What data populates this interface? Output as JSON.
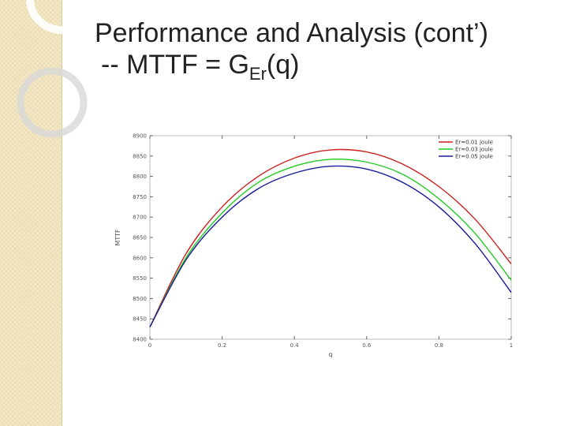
{
  "slide": {
    "title_line1": "Performance and Analysis (cont’)",
    "title_line2_main": "-- MTTF = G",
    "title_line2_sub": "Er",
    "title_line2_end": "(q)"
  },
  "chart_data": {
    "type": "line",
    "title": "",
    "xlabel": "q",
    "ylabel": "MTTF",
    "xlim": [
      0,
      1
    ],
    "ylim": [
      8400,
      8900
    ],
    "x_ticks": [
      0,
      0.2,
      0.4,
      0.6,
      0.8,
      1
    ],
    "x_tick_labels": [
      "0",
      "0.2",
      "0.4",
      "0.6",
      "0.8",
      "1"
    ],
    "y_ticks": [
      8400,
      8450,
      8500,
      8550,
      8600,
      8650,
      8700,
      8750,
      8800,
      8850,
      8900
    ],
    "y_tick_labels": [
      "8400",
      "8450",
      "8500",
      "8550",
      "8600",
      "8650",
      "8700",
      "8750",
      "8800",
      "8850",
      "8900"
    ],
    "grid": false,
    "legend_position": "top-right",
    "series": [
      {
        "name": "Er=0.01 joule",
        "color": "#cc2020",
        "x": [
          0,
          0.1,
          0.2,
          0.3,
          0.4,
          0.5,
          0.6,
          0.7,
          0.8,
          0.9,
          1.0
        ],
        "y": [
          8430,
          8610,
          8725,
          8800,
          8845,
          8865,
          8860,
          8830,
          8775,
          8695,
          8585
        ]
      },
      {
        "name": "Er=0.03 joule",
        "color": "#20cc20",
        "x": [
          0,
          0.1,
          0.2,
          0.3,
          0.4,
          0.5,
          0.6,
          0.7,
          0.8,
          0.9,
          1.0
        ],
        "y": [
          8430,
          8600,
          8710,
          8785,
          8825,
          8842,
          8835,
          8805,
          8745,
          8660,
          8545
        ]
      },
      {
        "name": "Er=0.05 joule",
        "color": "#1a1a9a",
        "x": [
          0,
          0.1,
          0.2,
          0.3,
          0.4,
          0.5,
          0.6,
          0.7,
          0.8,
          0.9,
          1.0
        ],
        "y": [
          8430,
          8595,
          8700,
          8770,
          8808,
          8825,
          8818,
          8785,
          8725,
          8635,
          8515
        ]
      }
    ]
  }
}
